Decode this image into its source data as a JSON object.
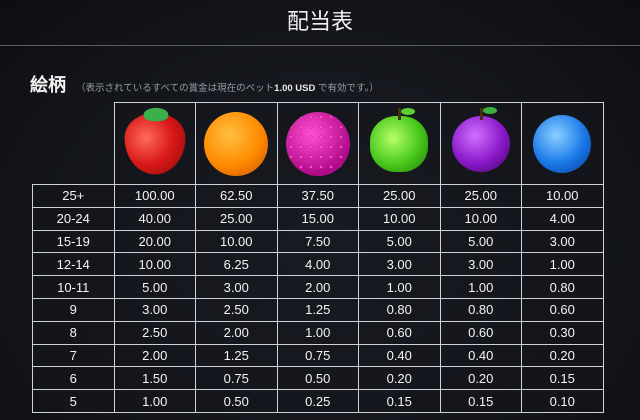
{
  "header": {
    "title": "配当表"
  },
  "section": {
    "heading": "絵柄",
    "note_prefix": "（表示されているすべての賞金は現在のベット",
    "bet": "1.00 USD",
    "note_suffix": " で有効です。）"
  },
  "symbols": [
    {
      "name": "strawberry-icon",
      "color": "#d81818"
    },
    {
      "name": "orange-icon",
      "color": "#ff8a00"
    },
    {
      "name": "raspberry-icon",
      "color": "#d0109a"
    },
    {
      "name": "apple-icon",
      "color": "#48c81a"
    },
    {
      "name": "plum-icon",
      "color": "#8a18c8"
    },
    {
      "name": "blueberry-icon",
      "color": "#1a78e8"
    }
  ],
  "rows": [
    {
      "count": "25+",
      "values": [
        "100.00",
        "62.50",
        "37.50",
        "25.00",
        "25.00",
        "10.00"
      ]
    },
    {
      "count": "20-24",
      "values": [
        "40.00",
        "25.00",
        "15.00",
        "10.00",
        "10.00",
        "4.00"
      ]
    },
    {
      "count": "15-19",
      "values": [
        "20.00",
        "10.00",
        "7.50",
        "5.00",
        "5.00",
        "3.00"
      ]
    },
    {
      "count": "12-14",
      "values": [
        "10.00",
        "6.25",
        "4.00",
        "3.00",
        "3.00",
        "1.00"
      ]
    },
    {
      "count": "10-11",
      "values": [
        "5.00",
        "3.00",
        "2.00",
        "1.00",
        "1.00",
        "0.80"
      ]
    },
    {
      "count": "9",
      "values": [
        "3.00",
        "2.50",
        "1.25",
        "0.80",
        "0.80",
        "0.60"
      ]
    },
    {
      "count": "8",
      "values": [
        "2.50",
        "2.00",
        "1.00",
        "0.60",
        "0.60",
        "0.30"
      ]
    },
    {
      "count": "7",
      "values": [
        "2.00",
        "1.25",
        "0.75",
        "0.40",
        "0.40",
        "0.20"
      ]
    },
    {
      "count": "6",
      "values": [
        "1.50",
        "0.75",
        "0.50",
        "0.20",
        "0.20",
        "0.15"
      ]
    },
    {
      "count": "5",
      "values": [
        "1.00",
        "0.50",
        "0.25",
        "0.15",
        "0.15",
        "0.10"
      ]
    }
  ]
}
